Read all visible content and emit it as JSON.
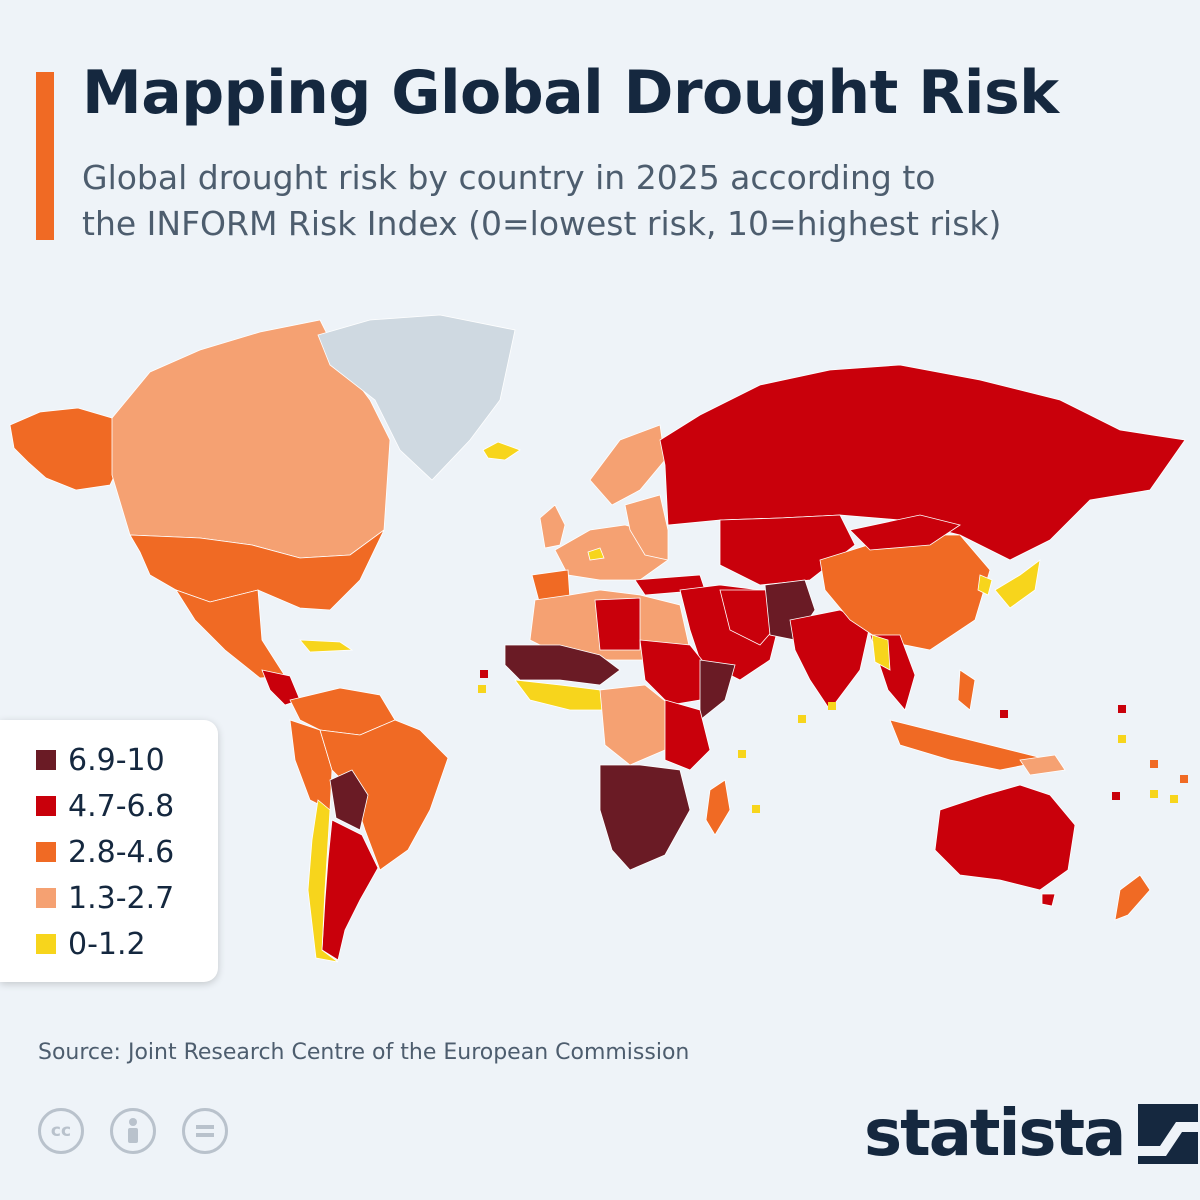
{
  "title": "Mapping Global Drought Risk",
  "subtitle_line1": "Global drought risk by country in 2025 according to",
  "subtitle_line2": "the INFORM Risk Index (0=lowest risk, 10=highest risk)",
  "legend": [
    {
      "label": "6.9-10",
      "color": "#6a1b25"
    },
    {
      "label": "4.7-6.8",
      "color": "#c9000b"
    },
    {
      "label": "2.8-4.6",
      "color": "#f06a24"
    },
    {
      "label": "1.3-2.7",
      "color": "#f5a172"
    },
    {
      "label": "0-1.2",
      "color": "#f7d51c"
    }
  ],
  "no_data_color": "#cfd9e1",
  "source": "Source: Joint Research Centre of the European Commission",
  "brand": {
    "name": "statista"
  },
  "license_icons": [
    "cc-icon",
    "by-icon",
    "nd-icon"
  ]
}
